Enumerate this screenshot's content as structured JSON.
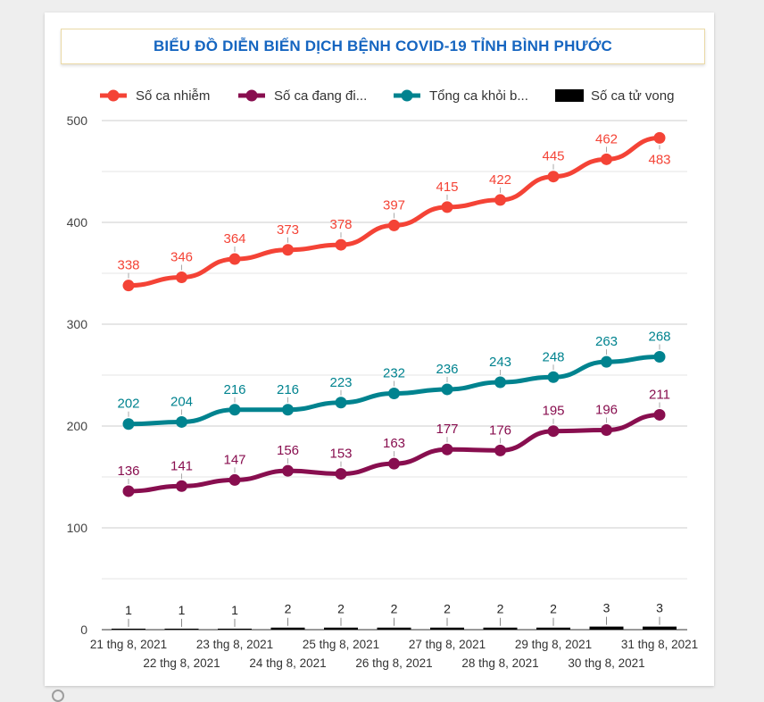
{
  "chart_data": {
    "type": "line",
    "title": "BIỂU ĐỒ DIỄN BIẾN DỊCH BỆNH COVID-19 TỈNH BÌNH PHƯỚC",
    "categories": [
      "21 thg 8, 2021",
      "22 thg 8, 2021",
      "23 thg 8, 2021",
      "24 thg 8, 2021",
      "25 thg 8, 2021",
      "26 thg 8, 2021",
      "27 thg 8, 2021",
      "28 thg 8, 2021",
      "29 thg 8, 2021",
      "30 thg 8, 2021",
      "31 thg 8, 2021"
    ],
    "ylim": [
      0,
      500
    ],
    "yticks": [
      "0",
      "100",
      "200",
      "300",
      "400",
      "500"
    ],
    "grid": true,
    "legend_position": "top",
    "series": [
      {
        "name": "Số ca nhiễm",
        "legend_label": "Số ca nhiễm",
        "kind": "line",
        "color": "#f44336",
        "values": [
          338,
          346,
          364,
          373,
          378,
          397,
          415,
          422,
          445,
          462,
          483
        ]
      },
      {
        "name": "Số ca đang điều trị",
        "legend_label": "Số ca đang đi...",
        "kind": "line",
        "color": "#880e4f",
        "values": [
          136,
          141,
          147,
          156,
          153,
          163,
          177,
          176,
          195,
          196,
          211
        ]
      },
      {
        "name": "Tổng ca khỏi bệnh",
        "legend_label": "Tổng ca khỏi b...",
        "kind": "line",
        "color": "#00838f",
        "values": [
          202,
          204,
          216,
          216,
          223,
          232,
          236,
          243,
          248,
          263,
          268
        ]
      },
      {
        "name": "Số ca tử vong",
        "legend_label": "Số ca tử vong",
        "kind": "bar",
        "color": "#000000",
        "values": [
          1,
          1,
          1,
          2,
          2,
          2,
          2,
          2,
          2,
          3,
          3
        ]
      }
    ]
  }
}
